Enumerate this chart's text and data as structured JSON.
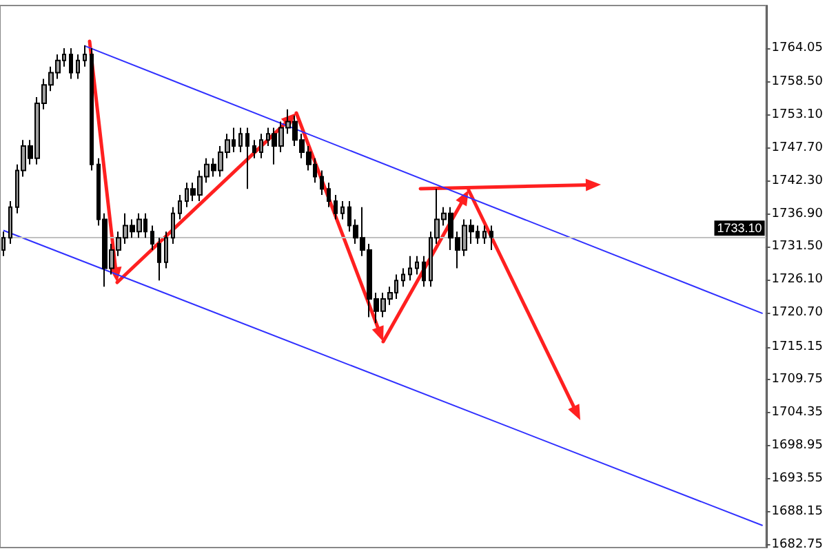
{
  "chart_data": {
    "type": "candlestick",
    "categories": [
      null,
      null,
      null,
      null,
      null,
      null,
      null,
      null,
      null,
      null,
      null,
      null,
      null,
      null,
      null,
      null,
      null,
      null,
      null,
      null,
      null,
      null,
      null,
      null,
      null,
      null,
      null,
      null,
      null,
      null,
      null,
      null,
      null,
      null,
      null,
      null,
      null,
      null,
      null,
      null,
      null,
      null,
      null,
      null,
      null,
      null,
      null,
      null,
      null,
      null,
      null,
      null,
      null,
      null,
      null,
      null,
      null,
      null,
      null,
      null,
      null,
      null,
      null,
      null,
      null,
      null,
      null,
      null,
      null,
      null,
      null,
      null,
      null,
      null,
      null,
      null,
      null,
      null,
      null,
      null,
      null,
      null,
      null,
      null,
      null,
      null,
      null,
      null,
      null,
      null,
      null,
      null,
      null,
      null,
      null,
      null,
      null,
      null,
      null,
      null,
      null,
      null,
      null,
      null,
      null,
      null,
      null,
      null,
      null,
      null,
      null,
      null,
      null
    ],
    "ohlc": [
      [
        1731,
        1734,
        1730,
        1733
      ],
      [
        1733,
        1739,
        1732,
        1738
      ],
      [
        1738,
        1745,
        1737,
        1744
      ],
      [
        1744,
        1749,
        1743,
        1748
      ],
      [
        1748,
        1749,
        1745,
        1746
      ],
      [
        1746,
        1756,
        1745,
        1755
      ],
      [
        1755,
        1759,
        1754,
        1758
      ],
      [
        1758,
        1761,
        1757,
        1760
      ],
      [
        1760,
        1763,
        1759,
        1762
      ],
      [
        1762,
        1764,
        1761,
        1763
      ],
      [
        1763,
        1764,
        1759,
        1760
      ],
      [
        1760,
        1763,
        1759,
        1762
      ],
      [
        1762,
        1764.5,
        1761,
        1763
      ],
      [
        1763,
        1764,
        1744,
        1745
      ],
      [
        1745,
        1746,
        1735,
        1736
      ],
      [
        1736,
        1737,
        1725,
        1728
      ],
      [
        1728,
        1732,
        1727,
        1731
      ],
      [
        1731,
        1734,
        1730,
        1733
      ],
      [
        1733,
        1737,
        1732,
        1735
      ],
      [
        1735,
        1736,
        1733,
        1734
      ],
      [
        1734,
        1737,
        1733,
        1736
      ],
      [
        1736,
        1737,
        1733,
        1734
      ],
      [
        1734,
        1735,
        1731,
        1732
      ],
      [
        1732,
        1733,
        1726,
        1729
      ],
      [
        1729,
        1734,
        1728,
        1733
      ],
      [
        1733,
        1738,
        1732,
        1737
      ],
      [
        1737,
        1740,
        1736,
        1739
      ],
      [
        1739,
        1742,
        1738,
        1741
      ],
      [
        1741,
        1742,
        1739,
        1740
      ],
      [
        1740,
        1744,
        1739,
        1743
      ],
      [
        1743,
        1746,
        1742,
        1745
      ],
      [
        1745,
        1746,
        1743,
        1744
      ],
      [
        1744,
        1748,
        1743,
        1747
      ],
      [
        1747,
        1750,
        1746,
        1749
      ],
      [
        1749,
        1751,
        1747,
        1748
      ],
      [
        1748,
        1751,
        1747,
        1750
      ],
      [
        1750,
        1751,
        1741,
        1748
      ],
      [
        1748,
        1749,
        1746,
        1747
      ],
      [
        1747,
        1750,
        1746,
        1749
      ],
      [
        1749,
        1751,
        1748,
        1750
      ],
      [
        1750,
        1751,
        1745,
        1748
      ],
      [
        1748,
        1752,
        1747,
        1751
      ],
      [
        1751,
        1754,
        1750,
        1752
      ],
      [
        1752,
        1753,
        1748,
        1749
      ],
      [
        1749,
        1750,
        1746,
        1747
      ],
      [
        1747,
        1748,
        1744,
        1745
      ],
      [
        1745,
        1746,
        1742,
        1743
      ],
      [
        1743,
        1744,
        1740,
        1741
      ],
      [
        1741,
        1742,
        1738,
        1739
      ],
      [
        1739,
        1740,
        1736,
        1737
      ],
      [
        1737,
        1739,
        1736,
        1738
      ],
      [
        1738,
        1739,
        1734,
        1735
      ],
      [
        1735,
        1736,
        1732,
        1733
      ],
      [
        1733,
        1738,
        1730,
        1731
      ],
      [
        1731,
        1732,
        1720,
        1723
      ],
      [
        1723,
        1724,
        1719,
        1721
      ],
      [
        1721,
        1724,
        1720,
        1723
      ],
      [
        1723,
        1725,
        1722,
        1724
      ],
      [
        1724,
        1727,
        1723,
        1726
      ],
      [
        1726,
        1728,
        1725,
        1727
      ],
      [
        1727,
        1730,
        1726,
        1728
      ],
      [
        1728,
        1730,
        1727,
        1729
      ],
      [
        1729,
        1730,
        1725,
        1726
      ],
      [
        1726,
        1734,
        1725,
        1733
      ],
      [
        1733,
        1741,
        1732,
        1736
      ],
      [
        1736,
        1738,
        1735,
        1737
      ],
      [
        1737,
        1738,
        1731,
        1733
      ],
      [
        1733,
        1734,
        1728,
        1731
      ],
      [
        1731,
        1736,
        1730,
        1735
      ],
      [
        1735,
        1736,
        1732,
        1734
      ],
      [
        1734,
        1735,
        1732,
        1733
      ],
      [
        1733,
        1735,
        1732,
        1734
      ],
      [
        1734,
        1735,
        1731,
        1733.1
      ],
      null,
      null,
      null,
      null,
      null,
      null,
      null,
      null,
      null,
      null,
      null,
      null,
      null,
      null,
      null,
      null,
      null,
      null,
      null,
      null,
      null,
      null,
      null,
      null,
      null,
      null,
      null,
      null,
      null,
      null,
      null,
      null,
      null,
      null,
      null,
      null,
      null,
      null,
      null,
      null
    ],
    "color": "#000000",
    "series": [
      {
        "type": "line",
        "color": "#3030ff",
        "values": [
          null,
          null,
          null,
          null,
          null,
          null,
          null,
          null,
          null,
          null,
          null,
          null,
          1764.4,
          null,
          null,
          null,
          null,
          null,
          null,
          null,
          null,
          null,
          null,
          null,
          null,
          null,
          null,
          null,
          null,
          null,
          null,
          null,
          null,
          null,
          null,
          null,
          null,
          null,
          null,
          null,
          null,
          null,
          null,
          null,
          null,
          null,
          null,
          null,
          null,
          null,
          null,
          null,
          null,
          null,
          null,
          null,
          null,
          null,
          null,
          null,
          null,
          null,
          null,
          null,
          null,
          null,
          null,
          null,
          null,
          null,
          null,
          null,
          null,
          null,
          null,
          null,
          null,
          null,
          null,
          null,
          null,
          null,
          null,
          null,
          null,
          null,
          null,
          null,
          null,
          null,
          null,
          null,
          null,
          null,
          null,
          null,
          null,
          null,
          null,
          null,
          null,
          null,
          null,
          null,
          null,
          null,
          null,
          null,
          null,
          null,
          null,
          null,
          1720.6
        ]
      },
      {
        "type": "line",
        "color": "#3030ff",
        "values": [
          1734.2,
          null,
          null,
          null,
          null,
          null,
          null,
          null,
          null,
          null,
          null,
          null,
          null,
          null,
          null,
          null,
          null,
          null,
          null,
          null,
          null,
          null,
          null,
          null,
          null,
          null,
          null,
          null,
          null,
          null,
          null,
          null,
          null,
          null,
          null,
          null,
          null,
          null,
          null,
          null,
          null,
          null,
          null,
          null,
          null,
          null,
          null,
          null,
          null,
          null,
          null,
          null,
          null,
          null,
          null,
          null,
          null,
          null,
          null,
          null,
          null,
          null,
          null,
          null,
          null,
          null,
          null,
          null,
          null,
          null,
          null,
          null,
          null,
          null,
          null,
          null,
          null,
          null,
          null,
          null,
          null,
          null,
          null,
          null,
          null,
          null,
          null,
          null,
          null,
          null,
          null,
          null,
          null,
          null,
          null,
          null,
          null,
          null,
          null,
          null,
          null,
          null,
          null,
          null,
          null,
          null,
          null,
          null,
          null,
          null,
          null,
          null,
          1685.9
        ]
      }
    ],
    "ylim": [
      1682.3,
      1771
    ],
    "yticks": [
      {
        "value": 1682.75,
        "label": "1682.75"
      },
      {
        "value": 1688.15,
        "label": "1688.15"
      },
      {
        "value": 1693.55,
        "label": "1693.55"
      },
      {
        "value": 1698.95,
        "label": "1698.95"
      },
      {
        "value": 1704.35,
        "label": "1704.35"
      },
      {
        "value": 1709.75,
        "label": "1709.75"
      },
      {
        "value": 1715.15,
        "label": "1715.15"
      },
      {
        "value": 1720.7,
        "label": "1720.70"
      },
      {
        "value": 1726.1,
        "label": "1726.10"
      },
      {
        "value": 1731.5,
        "label": "1731.50"
      },
      {
        "value": 1736.9,
        "label": "1736.90"
      },
      {
        "value": 1742.3,
        "label": "1742.30"
      },
      {
        "value": 1747.7,
        "label": "1747.70"
      },
      {
        "value": 1753.1,
        "label": "1753.10"
      },
      {
        "value": 1758.5,
        "label": "1758.50"
      },
      {
        "value": 1764.05,
        "label": "1764.05"
      }
    ],
    "ref_lines": [
      {
        "axis": "y",
        "value": 1733.1,
        "label": "1733.10",
        "color": "#c0c0c0"
      }
    ],
    "tick_labels": "y",
    "grid": false,
    "marker": "none"
  }
}
